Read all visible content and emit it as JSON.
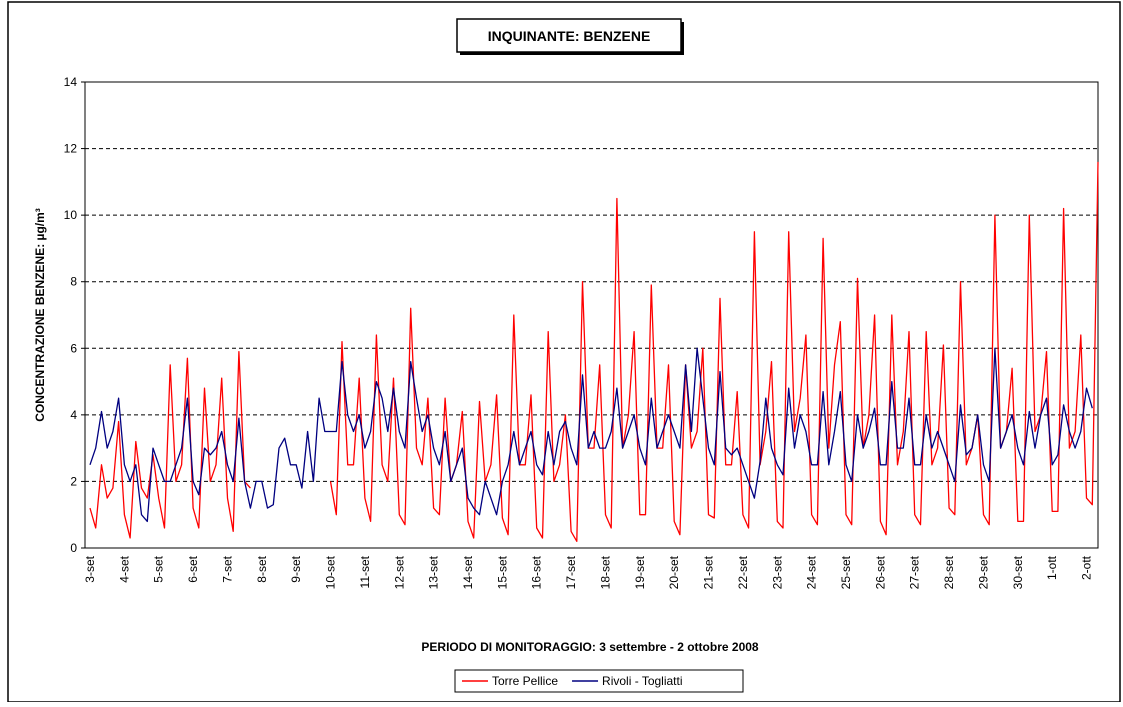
{
  "chart_data": {
    "type": "line",
    "title": "INQUINANTE: BENZENE",
    "xlabel": "PERIODO DI MONITORAGGIO: 3 settembre - 2 ottobre 2008",
    "ylabel": "CONCENTRAZIONE BENZENE:  µg/m³",
    "ylim": [
      0,
      14
    ],
    "yticks": [
      0,
      2,
      4,
      6,
      8,
      10,
      12,
      14
    ],
    "grid": true,
    "legend": "bottom",
    "categories": [
      "3-set",
      null,
      null,
      null,
      null,
      null,
      "4-set",
      null,
      null,
      null,
      null,
      null,
      "5-set",
      null,
      null,
      null,
      null,
      null,
      "6-set",
      null,
      null,
      null,
      null,
      null,
      "7-set",
      null,
      null,
      null,
      null,
      null,
      "8-set",
      null,
      null,
      null,
      null,
      null,
      "9-set",
      null,
      null,
      null,
      null,
      null,
      "10-set",
      null,
      null,
      null,
      null,
      null,
      "11-set",
      null,
      null,
      null,
      null,
      null,
      "12-set",
      null,
      null,
      null,
      null,
      null,
      "13-set",
      null,
      null,
      null,
      null,
      null,
      "14-set",
      null,
      null,
      null,
      null,
      null,
      "15-set",
      null,
      null,
      null,
      null,
      null,
      "16-set",
      null,
      null,
      null,
      null,
      null,
      "17-set",
      null,
      null,
      null,
      null,
      null,
      "18-set",
      null,
      null,
      null,
      null,
      null,
      "19-set",
      null,
      null,
      null,
      null,
      null,
      "20-set",
      null,
      null,
      null,
      null,
      null,
      "21-set",
      null,
      null,
      null,
      null,
      null,
      "22-set",
      null,
      null,
      null,
      null,
      null,
      "23-set",
      null,
      null,
      null,
      null,
      null,
      "24-set",
      null,
      null,
      null,
      null,
      null,
      "25-set",
      null,
      null,
      null,
      null,
      null,
      "26-set",
      null,
      null,
      null,
      null,
      null,
      "27-set",
      null,
      null,
      null,
      null,
      null,
      "28-set",
      null,
      null,
      null,
      null,
      null,
      "29-set",
      null,
      null,
      null,
      null,
      null,
      "30-set",
      null,
      null,
      null,
      null,
      null,
      "1-ott",
      null,
      null,
      null,
      null,
      null,
      "2-ott",
      null,
      null
    ],
    "series": [
      {
        "name": "Torre Pellice",
        "color": "#ff0000",
        "values": [
          1.2,
          0.6,
          2.5,
          1.5,
          1.8,
          3.8,
          1.0,
          0.3,
          3.2,
          1.8,
          1.5,
          2.8,
          1.5,
          0.6,
          5.5,
          2.0,
          2.5,
          5.7,
          1.2,
          0.6,
          4.8,
          2.0,
          2.5,
          5.1,
          1.5,
          0.5,
          5.9,
          2.0,
          1.8,
          null,
          null,
          null,
          null,
          null,
          null,
          null,
          null,
          null,
          null,
          null,
          null,
          null,
          2.0,
          1.0,
          6.2,
          2.5,
          2.5,
          5.1,
          1.5,
          0.8,
          6.4,
          2.5,
          2.0,
          5.1,
          1.0,
          0.7,
          7.2,
          3.0,
          2.5,
          4.5,
          1.2,
          1.0,
          4.5,
          2.0,
          2.5,
          4.1,
          0.8,
          0.3,
          4.4,
          2.0,
          2.5,
          4.6,
          0.9,
          0.4,
          7.0,
          2.5,
          2.5,
          4.6,
          0.6,
          0.3,
          6.5,
          2.0,
          2.5,
          4.0,
          0.5,
          0.2,
          8.0,
          3.0,
          3.0,
          5.5,
          1.0,
          0.6,
          10.5,
          3.0,
          4.0,
          6.5,
          1.0,
          1.0,
          7.9,
          3.0,
          3.0,
          5.5,
          0.8,
          0.4,
          5.5,
          3.0,
          3.5,
          6.0,
          1.0,
          0.9,
          7.5,
          2.5,
          2.5,
          4.7,
          1.0,
          0.6,
          9.5,
          2.5,
          3.5,
          5.6,
          0.8,
          0.6,
          9.5,
          3.5,
          4.5,
          6.4,
          1.0,
          0.7,
          9.3,
          3.0,
          5.5,
          6.8,
          1.0,
          0.7,
          8.1,
          3.0,
          4.0,
          7.0,
          0.8,
          0.4,
          7.0,
          2.5,
          3.5,
          6.5,
          1.0,
          0.7,
          6.5,
          2.5,
          3.0,
          6.1,
          1.2,
          1.0,
          8.0,
          2.5,
          3.0,
          4.0,
          1.0,
          0.7,
          10.0,
          3.0,
          3.5,
          5.4,
          0.8,
          0.8,
          10.0,
          3.5,
          4.0,
          5.9,
          1.1,
          1.1,
          10.2,
          3.0,
          3.5,
          6.4,
          1.5,
          1.3,
          11.6
        ]
      },
      {
        "name": "Rivoli - Togliatti",
        "color": "#000080",
        "values": [
          2.5,
          3.0,
          4.1,
          3.0,
          3.5,
          4.5,
          2.5,
          2.0,
          2.5,
          1.0,
          0.8,
          3.0,
          2.5,
          2.0,
          2.0,
          2.5,
          3.0,
          4.5,
          2.0,
          1.6,
          3.0,
          2.8,
          3.0,
          3.5,
          2.5,
          2.0,
          3.9,
          2.0,
          1.2,
          2.0,
          2.0,
          1.2,
          1.3,
          3.0,
          3.3,
          2.5,
          2.5,
          1.8,
          3.5,
          2.0,
          4.5,
          3.5,
          3.5,
          3.5,
          5.6,
          4.0,
          3.5,
          4.0,
          3.0,
          3.5,
          5.0,
          4.5,
          3.5,
          4.8,
          3.5,
          3.0,
          5.6,
          4.5,
          3.5,
          4.0,
          3.0,
          2.5,
          3.5,
          2.0,
          2.5,
          3.0,
          1.5,
          1.2,
          1.0,
          2.0,
          1.5,
          1.0,
          2.0,
          2.5,
          3.5,
          2.5,
          3.0,
          3.5,
          2.5,
          2.2,
          3.5,
          2.5,
          3.5,
          3.8,
          3.0,
          2.5,
          5.2,
          3.0,
          3.5,
          3.0,
          3.0,
          3.5,
          4.8,
          3.0,
          3.5,
          4.0,
          3.0,
          2.5,
          4.5,
          3.0,
          3.5,
          4.0,
          3.5,
          3.0,
          5.5,
          3.5,
          6.0,
          4.5,
          3.0,
          2.5,
          5.3,
          3.0,
          2.8,
          3.0,
          2.5,
          2.0,
          1.5,
          2.6,
          4.5,
          3.0,
          2.5,
          2.2,
          4.8,
          3.0,
          4.0,
          3.5,
          2.5,
          2.5,
          4.7,
          2.5,
          3.5,
          4.7,
          2.5,
          2.0,
          4.0,
          3.0,
          3.5,
          4.2,
          2.5,
          2.5,
          5.0,
          3.0,
          3.0,
          4.5,
          2.5,
          2.5,
          4.0,
          3.0,
          3.5,
          3.0,
          2.5,
          2.0,
          4.3,
          2.8,
          3.0,
          4.0,
          2.5,
          2.0,
          6.0,
          3.0,
          3.5,
          4.0,
          3.0,
          2.5,
          4.1,
          3.0,
          4.0,
          4.5,
          2.5,
          2.8,
          4.3,
          3.5,
          3.0,
          3.5,
          4.8,
          4.2,
          null
        ]
      }
    ]
  }
}
